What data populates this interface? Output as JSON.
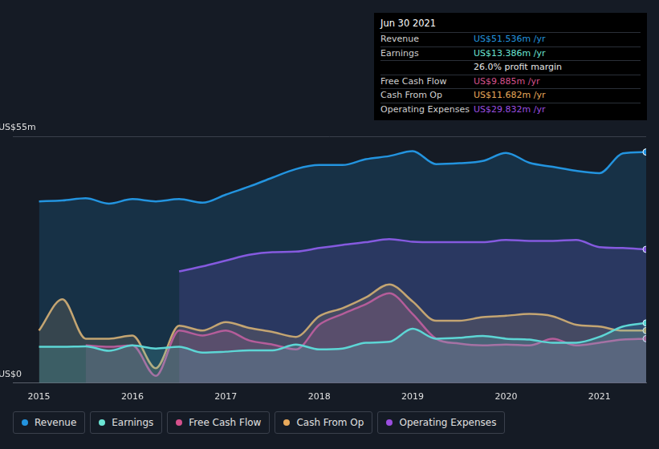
{
  "chart_data": {
    "type": "line",
    "x": [
      2015,
      2015.25,
      2015.5,
      2015.75,
      2016,
      2016.25,
      2016.5,
      2016.75,
      2017,
      2017.25,
      2017.5,
      2017.75,
      2018,
      2018.25,
      2018.5,
      2018.75,
      2019,
      2019.25,
      2019.5,
      2019.75,
      2020,
      2020.25,
      2020.5,
      2020.75,
      2021,
      2021.25,
      2021.5
    ],
    "xlim": [
      2014.72,
      2021.5
    ],
    "xticks": [
      2015,
      2016,
      2017,
      2018,
      2019,
      2020,
      2021
    ],
    "ylim": [
      0,
      55
    ],
    "yticks": [
      {
        "value": 0,
        "label": "US$0"
      },
      {
        "value": 55,
        "label": "US$55m"
      }
    ],
    "grid": true,
    "legend": "bottom-left",
    "series": [
      {
        "name": "Revenue",
        "color": "#2394df",
        "values": [
          40.5,
          40.7,
          41.2,
          40.0,
          41.0,
          40.5,
          41.0,
          40.2,
          42.0,
          43.8,
          45.8,
          47.7,
          48.6,
          48.6,
          49.9,
          50.6,
          51.7,
          48.8,
          49.0,
          49.5,
          51.3,
          49.1,
          48.2,
          47.3,
          46.8,
          51.2,
          51.5
        ]
      },
      {
        "name": "Earnings",
        "color": "#6be5d4",
        "values": [
          8.1,
          8.1,
          8.2,
          7.2,
          8.4,
          7.7,
          8.1,
          6.8,
          7.0,
          7.3,
          7.3,
          8.6,
          7.5,
          7.7,
          9.0,
          9.2,
          12.1,
          9.9,
          10.1,
          10.5,
          9.9,
          9.7,
          9.0,
          9.0,
          10.3,
          12.6,
          13.4
        ]
      },
      {
        "name": "Free Cash Flow",
        "color": "#d6518c",
        "values": [
          null,
          null,
          8.4,
          8.1,
          8.4,
          1.6,
          11.7,
          10.6,
          11.7,
          9.5,
          8.6,
          7.5,
          13.0,
          15.4,
          17.6,
          20.0,
          15.4,
          9.9,
          8.8,
          8.4,
          8.6,
          8.4,
          9.9,
          8.4,
          9.0,
          9.7,
          9.9
        ]
      },
      {
        "name": "Cash From Op",
        "color": "#e8a95b",
        "values": [
          11.7,
          18.7,
          9.9,
          9.9,
          10.6,
          3.3,
          12.8,
          11.7,
          13.6,
          12.3,
          11.4,
          10.3,
          14.9,
          16.7,
          19.1,
          22.0,
          18.2,
          13.9,
          13.9,
          14.7,
          15.0,
          15.4,
          14.9,
          13.0,
          12.6,
          11.7,
          11.7
        ]
      },
      {
        "name": "Operating Expenses",
        "color": "#9b4ee0",
        "values": [
          null,
          null,
          null,
          null,
          null,
          null,
          24.9,
          26.0,
          27.3,
          28.6,
          29.2,
          29.3,
          30.1,
          30.8,
          31.4,
          32.1,
          31.5,
          31.4,
          31.4,
          31.4,
          31.9,
          31.7,
          31.7,
          31.9,
          30.3,
          30.1,
          29.8
        ]
      }
    ],
    "annotations": {
      "title": "Jun 30 2021",
      "rows": [
        {
          "label": "Revenue",
          "value": "US$51.536m /yr"
        },
        {
          "label": "Earnings",
          "value": "US$13.386m /yr"
        },
        {
          "text": "26.0% profit margin"
        },
        {
          "label": "Free Cash Flow",
          "value": "US$9.885m /yr"
        },
        {
          "label": "Cash From Op",
          "value": "US$11.682m /yr"
        },
        {
          "label": "Operating Expenses",
          "value": "US$29.832m /yr"
        }
      ]
    }
  }
}
